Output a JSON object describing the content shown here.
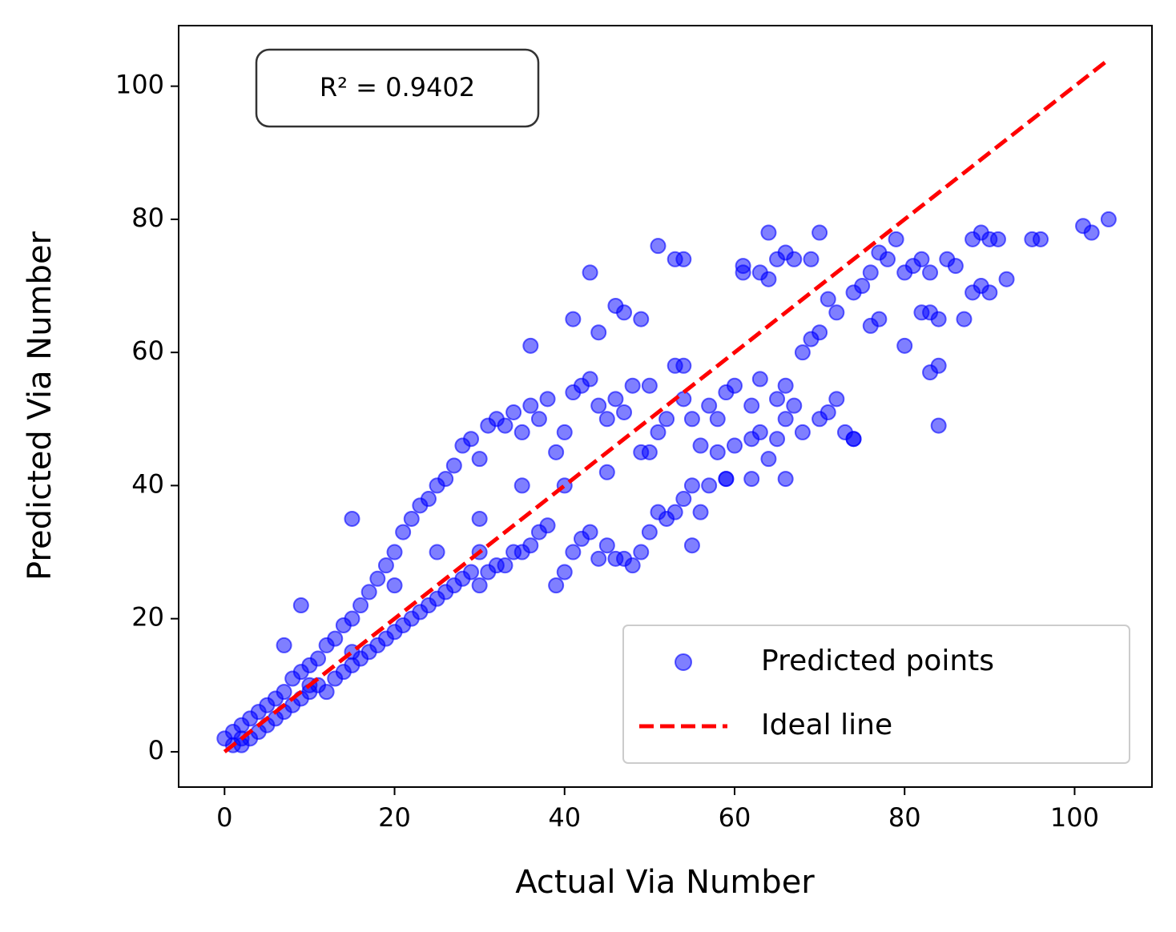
{
  "chart_data": {
    "type": "scatter",
    "xlabel": "Actual Via Number",
    "ylabel": "Predicted Via Number",
    "annotation": "R² = 0.9402",
    "xlim": [
      -5.4,
      109.1
    ],
    "ylim": [
      -5.3,
      109.1
    ],
    "xticks": [
      0,
      20,
      40,
      60,
      80,
      100
    ],
    "yticks": [
      0,
      20,
      40,
      60,
      80,
      100
    ],
    "legend": "lower right",
    "series": [
      {
        "name": "Predicted points",
        "type": "scatter",
        "color": "#0000ff",
        "x": [
          0,
          1,
          1,
          2,
          2,
          2,
          3,
          3,
          4,
          4,
          5,
          5,
          6,
          6,
          7,
          7,
          8,
          8,
          9,
          9,
          10,
          10,
          11,
          11,
          12,
          12,
          13,
          13,
          14,
          14,
          15,
          15,
          16,
          16,
          17,
          17,
          18,
          18,
          19,
          19,
          20,
          20,
          21,
          21,
          22,
          22,
          23,
          23,
          24,
          24,
          25,
          25,
          26,
          26,
          27,
          27,
          28,
          28,
          29,
          29,
          30,
          30,
          31,
          31,
          32,
          32,
          33,
          33,
          34,
          34,
          35,
          35,
          36,
          36,
          37,
          37,
          38,
          38,
          39,
          39,
          40,
          40,
          41,
          41,
          42,
          42,
          43,
          43,
          44,
          44,
          45,
          45,
          46,
          46,
          47,
          47,
          48,
          48,
          49,
          49,
          50,
          50,
          51,
          51,
          52,
          52,
          53,
          53,
          54,
          54,
          55,
          55,
          56,
          56,
          57,
          57,
          58,
          58,
          59,
          59,
          60,
          60,
          62,
          62,
          63,
          63,
          64,
          65,
          65,
          66,
          66,
          67,
          68,
          70,
          71,
          72,
          73,
          74,
          68,
          69,
          70,
          71,
          72,
          74,
          75,
          76,
          77,
          78,
          79,
          80,
          81,
          82,
          83,
          85,
          86,
          88,
          89,
          20,
          25,
          30,
          35,
          40,
          45,
          50,
          15,
          10,
          30,
          104,
          101,
          102,
          95,
          96,
          89,
          90,
          91,
          88,
          92,
          90,
          87,
          84,
          83,
          84,
          80,
          77,
          76,
          82,
          83,
          84,
          64,
          70,
          69,
          67,
          66,
          65,
          61,
          61,
          63,
          64,
          51,
          53,
          54,
          43,
          46,
          47,
          49,
          44,
          41,
          36,
          15,
          9,
          55,
          66,
          74,
          54,
          59,
          62,
          7
        ],
        "y": [
          2,
          1,
          3,
          1,
          4,
          2,
          2,
          5,
          3,
          6,
          4,
          7,
          5,
          8,
          6,
          9,
          7,
          11,
          8,
          12,
          9,
          13,
          10,
          14,
          9,
          16,
          11,
          17,
          12,
          19,
          13,
          20,
          14,
          22,
          15,
          24,
          16,
          26,
          17,
          28,
          18,
          30,
          19,
          33,
          20,
          35,
          21,
          37,
          22,
          38,
          23,
          40,
          24,
          41,
          25,
          43,
          26,
          46,
          27,
          47,
          25,
          44,
          27,
          49,
          28,
          50,
          28,
          49,
          30,
          51,
          30,
          48,
          31,
          52,
          33,
          50,
          34,
          53,
          25,
          45,
          27,
          48,
          30,
          54,
          32,
          55,
          33,
          56,
          29,
          52,
          31,
          50,
          29,
          53,
          29,
          51,
          28,
          55,
          30,
          45,
          33,
          55,
          36,
          48,
          35,
          50,
          36,
          58,
          38,
          53,
          40,
          50,
          36,
          46,
          40,
          52,
          45,
          50,
          41,
          54,
          46,
          55,
          47,
          52,
          48,
          56,
          44,
          47,
          53,
          50,
          55,
          52,
          48,
          50,
          51,
          53,
          48,
          47,
          60,
          62,
          63,
          68,
          66,
          69,
          70,
          72,
          75,
          74,
          77,
          72,
          73,
          74,
          72,
          74,
          73,
          69,
          70,
          25,
          30,
          35,
          40,
          40,
          42,
          45,
          15,
          10,
          30,
          80,
          79,
          78,
          77,
          77,
          78,
          77,
          77,
          77,
          71,
          69,
          65,
          58,
          57,
          49,
          61,
          65,
          64,
          66,
          66,
          65,
          78,
          78,
          74,
          74,
          75,
          74,
          73,
          72,
          72,
          71,
          76,
          74,
          74,
          72,
          67,
          66,
          65,
          63,
          65,
          61,
          35,
          22,
          31,
          41,
          47,
          58,
          41,
          41,
          16
        ]
      },
      {
        "name": "Ideal line",
        "type": "line",
        "color": "#ff0000",
        "x": [
          0,
          104
        ],
        "y": [
          0,
          104
        ]
      }
    ]
  }
}
